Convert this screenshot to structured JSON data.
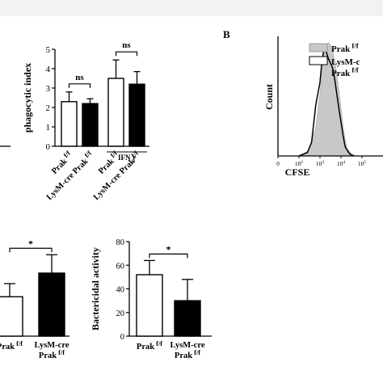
{
  "panel_label_b": "B",
  "chart_data": [
    {
      "id": "phago",
      "type": "bar",
      "ylabel": "phagocytic index",
      "ylim": [
        0,
        5
      ],
      "yticks": [
        0,
        1,
        2,
        3,
        4,
        5
      ],
      "categories": [
        {
          "main": "Prak",
          "sup": "f/f"
        },
        {
          "main": "LysM-cre Prak",
          "sup": "f/f"
        },
        {
          "main": "Prak",
          "sup": "f/f"
        },
        {
          "main": "LysM-cre Prak",
          "sup": "f/f"
        }
      ],
      "values": [
        2.3,
        2.2,
        3.5,
        3.2
      ],
      "errors": [
        0.5,
        0.25,
        0.95,
        0.65
      ],
      "fills": [
        "#ffffff",
        "#000000",
        "#ffffff",
        "#000000"
      ],
      "group_label": "IFN γ",
      "annotations": [
        {
          "text": "ns",
          "between": [
            0,
            1
          ]
        },
        {
          "text": "ns",
          "between": [
            2,
            3
          ]
        }
      ]
    },
    {
      "id": "cfse",
      "type": "histogram",
      "xlabel": "CFSE",
      "ylabel": "Count",
      "xticks": [
        {
          "base": "0",
          "exp": ""
        },
        {
          "base": "10",
          "exp": "2"
        },
        {
          "base": "10",
          "exp": "3"
        },
        {
          "base": "10",
          "exp": "4"
        },
        {
          "base": "10",
          "exp": "5"
        }
      ],
      "legend": [
        {
          "main": "Prak",
          "sup": "f/f",
          "fill": "#c8c8c8"
        },
        {
          "main": "LysM-c",
          "line2": "Prak",
          "sup": "f/f",
          "fill": "#ffffff"
        }
      ],
      "series": [
        {
          "fill": "#c8c8c8",
          "x": [
            1.0,
            1.5,
            1.8,
            2.0,
            2.1,
            2.2,
            2.3,
            2.4,
            2.5,
            2.6,
            2.7,
            2.8,
            2.9,
            3.0,
            3.1,
            3.2,
            3.3,
            3.5,
            3.7
          ],
          "y": [
            0.0,
            0.05,
            0.25,
            0.55,
            0.75,
            0.92,
            0.97,
            1.0,
            0.98,
            0.93,
            0.85,
            0.72,
            0.58,
            0.42,
            0.26,
            0.14,
            0.06,
            0.02,
            0.0
          ]
        },
        {
          "fill": "none",
          "x": [
            1.0,
            1.4,
            1.6,
            1.8,
            1.9,
            2.0,
            2.1,
            2.2,
            2.3,
            2.4,
            2.5,
            2.6,
            2.7,
            2.8,
            2.9,
            3.0,
            3.1,
            3.2,
            3.4,
            3.6
          ],
          "y": [
            0.0,
            0.03,
            0.12,
            0.45,
            0.55,
            0.65,
            0.85,
            0.95,
            0.92,
            0.86,
            0.82,
            0.78,
            0.68,
            0.55,
            0.42,
            0.3,
            0.18,
            0.08,
            0.02,
            0.0
          ]
        }
      ]
    },
    {
      "id": "left-bottom",
      "type": "bar",
      "categories": [
        {
          "main": "Prak",
          "sup": "f/f"
        },
        {
          "main": "LysM-cre",
          "line2": "Prak",
          "sup": "f/f"
        }
      ],
      "values": [
        30,
        48
      ],
      "errors": [
        10,
        14
      ],
      "fills": [
        "#ffffff",
        "#000000"
      ],
      "annotations": [
        {
          "text": "*",
          "between": [
            0,
            1
          ]
        }
      ]
    },
    {
      "id": "bactericidal",
      "type": "bar",
      "ylabel": "Bactericidal activity",
      "ylim": [
        0,
        80
      ],
      "yticks": [
        0,
        20,
        40,
        60,
        80
      ],
      "categories": [
        {
          "main": "Prak",
          "sup": "f/f"
        },
        {
          "main": "LysM-cre",
          "line2": "Prak",
          "sup": "f/f"
        }
      ],
      "values": [
        52,
        30
      ],
      "errors": [
        12,
        18
      ],
      "fills": [
        "#ffffff",
        "#000000"
      ],
      "annotations": [
        {
          "text": "*",
          "between": [
            0,
            1
          ]
        }
      ]
    }
  ]
}
